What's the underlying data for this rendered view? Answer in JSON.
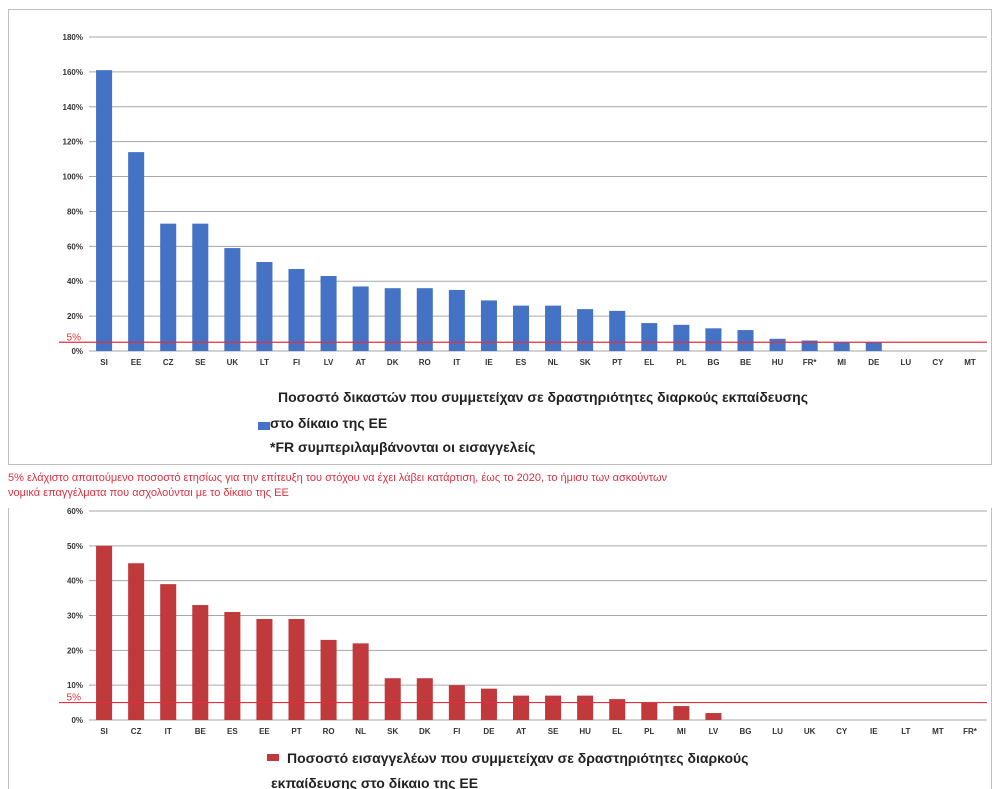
{
  "chart_data": [
    {
      "type": "bar",
      "color": "#4472c4",
      "categories": [
        "SI",
        "EE",
        "CZ",
        "SE",
        "UK",
        "LT",
        "FI",
        "LV",
        "AT",
        "DK",
        "RO",
        "IT",
        "IE",
        "ES",
        "NL",
        "SK",
        "PT",
        "EL",
        "PL",
        "BG",
        "BE",
        "HU",
        "FR*",
        "MI",
        "DE",
        "LU",
        "CY",
        "MT"
      ],
      "values": [
        161,
        114,
        73,
        73,
        59,
        51,
        47,
        43,
        37,
        36,
        36,
        35,
        29,
        26,
        26,
        24,
        23,
        16,
        15,
        13,
        12,
        7,
        6,
        5,
        5,
        0,
        0,
        0
      ],
      "ylim": [
        0,
        180
      ],
      "yticks": [
        "0%",
        "20%",
        "40%",
        "60%",
        "80%",
        "100%",
        "120%",
        "140%",
        "160%",
        "180%"
      ],
      "reference_line": {
        "value": 5,
        "label": "5%",
        "color": "#e03040"
      },
      "legend": [
        "Ποσοστό δικαστών που συμμετείχαν σε δραστηριότητες διαρκούς εκπαίδευσης",
        "στο δίκαιο της ΕΕ",
        "*FR  συμπεριλαμβάνονται οι εισαγγελείς"
      ],
      "grid": true
    },
    {
      "type": "bar",
      "color": "#c0393b",
      "categories": [
        "SI",
        "CZ",
        "IT",
        "BE",
        "ES",
        "EE",
        "PT",
        "RO",
        "NL",
        "SK",
        "DK",
        "FI",
        "DE",
        "AT",
        "SE",
        "HU",
        "EL",
        "PL",
        "MI",
        "LV",
        "BG",
        "LU",
        "UK",
        "CY",
        "IE",
        "LT",
        "MT",
        "FR*"
      ],
      "values": [
        50,
        45,
        39,
        33,
        31,
        29,
        29,
        23,
        22,
        12,
        12,
        10,
        9,
        7,
        7,
        7,
        6,
        5,
        4,
        2,
        0,
        0,
        0,
        0,
        0,
        0,
        0,
        0
      ],
      "ylim": [
        0,
        60
      ],
      "yticks": [
        "0%",
        "10%",
        "20%",
        "30%",
        "40%",
        "50%",
        "60%"
      ],
      "reference_line": {
        "value": 5,
        "label": "5%",
        "color": "#e03040"
      },
      "legend": [
        "Ποσοστό εισαγγελέων που συμμετείχαν σε δραστηριότητες διαρκούς",
        "εκπαίδευσης στο δίκαιο της ΕΕ"
      ],
      "grid": true
    }
  ],
  "note_lines": [
    "5% ελάχιστο απαιτούμενο ποσοστό ετησίως για την επίτευξη του στόχου να έχει λάβει κατάρτιση, έως το 2020, το ήμισυ των ασκούντων",
    "νομικά επαγγέλματα που ασχολούνται με το δίκαιο της ΕΕ"
  ]
}
